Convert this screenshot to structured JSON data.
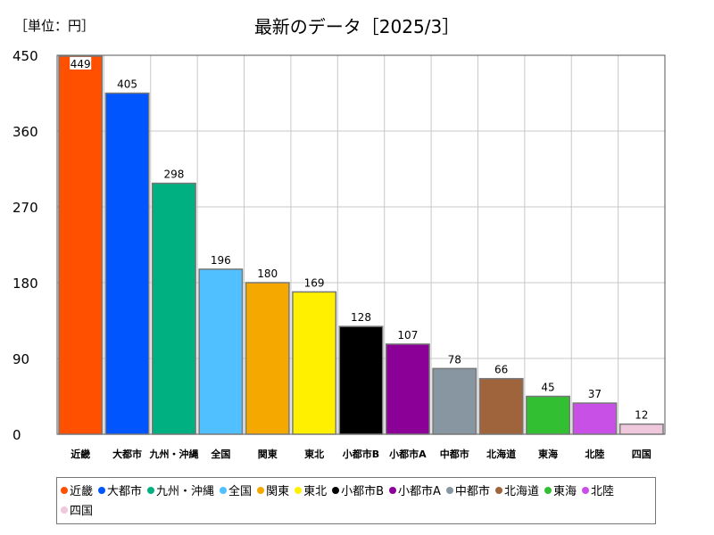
{
  "unit_label": "［単位：円］",
  "chart_data": {
    "type": "bar",
    "title": "最新のデータ［2025/3］",
    "categories": [
      "近畿",
      "大都市",
      "九州・沖縄",
      "全国",
      "関東",
      "東北",
      "小都市B",
      "小都市A",
      "中都市",
      "北海道",
      "東海",
      "北陸",
      "四国"
    ],
    "values": [
      449,
      405,
      298,
      196,
      180,
      169,
      128,
      107,
      78,
      66,
      45,
      37,
      12
    ],
    "colors": [
      "#ff5000",
      "#0055ff",
      "#00b080",
      "#50c0ff",
      "#f5a800",
      "#fff000",
      "#000000",
      "#8b0096",
      "#8796a0",
      "#a0643c",
      "#32c032",
      "#c850e6",
      "#f0c8dc"
    ],
    "ylim": [
      0,
      450
    ],
    "yticks": [
      0,
      90,
      180,
      270,
      360,
      450
    ],
    "grid": true,
    "legend_position": "bottom"
  }
}
